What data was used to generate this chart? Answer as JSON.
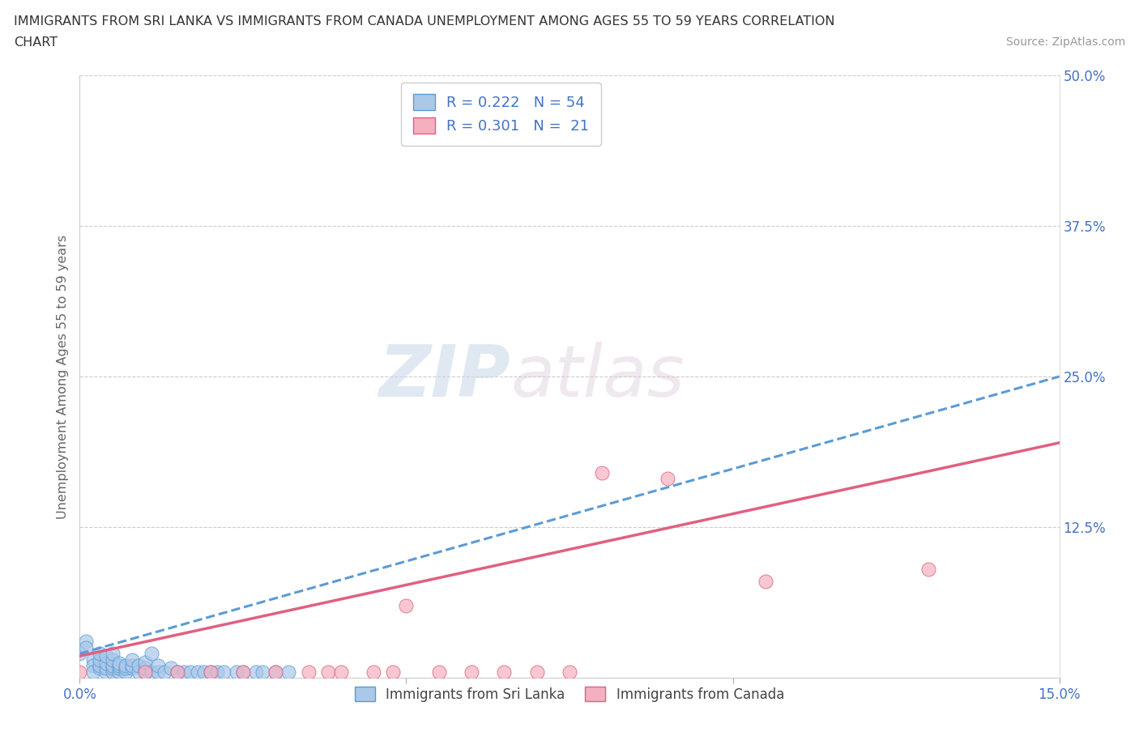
{
  "title_line1": "IMMIGRANTS FROM SRI LANKA VS IMMIGRANTS FROM CANADA UNEMPLOYMENT AMONG AGES 55 TO 59 YEARS CORRELATION",
  "title_line2": "CHART",
  "source": "Source: ZipAtlas.com",
  "ylabel": "Unemployment Among Ages 55 to 59 years",
  "xlim": [
    0.0,
    0.15
  ],
  "ylim": [
    0.0,
    0.5
  ],
  "xticks": [
    0.0,
    0.05,
    0.1,
    0.15
  ],
  "xtick_labels": [
    "0.0%",
    "",
    "",
    "15.0%"
  ],
  "yticks": [
    0.0,
    0.125,
    0.25,
    0.375,
    0.5
  ],
  "ytick_labels": [
    "",
    "12.5%",
    "25.0%",
    "37.5%",
    "50.0%"
  ],
  "sri_lanka_face_color": "#aac8e8",
  "sri_lanka_edge_color": "#5b9bd5",
  "canada_face_color": "#f5b0c0",
  "canada_edge_color": "#e06080",
  "sri_lanka_trend_color": "#5b9bd5",
  "canada_trend_color": "#e06080",
  "R_sri_lanka": "0.222",
  "N_sri_lanka": "54",
  "R_canada": "0.301",
  "N_canada": "21",
  "watermark_zip": "ZIP",
  "watermark_atlas": "atlas",
  "legend_label_sri_lanka": "Immigrants from Sri Lanka",
  "legend_label_canada": "Immigrants from Canada",
  "axis_label_color": "#4472c4",
  "title_color": "#333333",
  "source_color": "#999999",
  "ylabel_color": "#666666",
  "sl_x": [
    0.0,
    0.001,
    0.001,
    0.002,
    0.002,
    0.002,
    0.003,
    0.003,
    0.003,
    0.003,
    0.004,
    0.004,
    0.004,
    0.004,
    0.005,
    0.005,
    0.005,
    0.005,
    0.005,
    0.006,
    0.006,
    0.006,
    0.006,
    0.007,
    0.007,
    0.007,
    0.008,
    0.008,
    0.008,
    0.009,
    0.009,
    0.01,
    0.01,
    0.01,
    0.011,
    0.011,
    0.012,
    0.012,
    0.013,
    0.014,
    0.015,
    0.016,
    0.017,
    0.018,
    0.019,
    0.02,
    0.021,
    0.022,
    0.024,
    0.025,
    0.027,
    0.028,
    0.03,
    0.032
  ],
  "sl_y": [
    0.02,
    0.03,
    0.025,
    0.015,
    0.01,
    0.005,
    0.008,
    0.01,
    0.015,
    0.02,
    0.005,
    0.008,
    0.012,
    0.018,
    0.005,
    0.008,
    0.01,
    0.015,
    0.02,
    0.005,
    0.008,
    0.01,
    0.012,
    0.005,
    0.008,
    0.01,
    0.008,
    0.01,
    0.015,
    0.005,
    0.01,
    0.005,
    0.008,
    0.013,
    0.005,
    0.02,
    0.005,
    0.01,
    0.005,
    0.008,
    0.005,
    0.005,
    0.005,
    0.005,
    0.005,
    0.005,
    0.005,
    0.005,
    0.005,
    0.005,
    0.005,
    0.005,
    0.005,
    0.005
  ],
  "ca_x": [
    0.0,
    0.01,
    0.015,
    0.02,
    0.025,
    0.03,
    0.035,
    0.038,
    0.04,
    0.045,
    0.048,
    0.05,
    0.055,
    0.06,
    0.065,
    0.07,
    0.075,
    0.08,
    0.09,
    0.105,
    0.13
  ],
  "ca_y": [
    0.005,
    0.005,
    0.005,
    0.005,
    0.005,
    0.005,
    0.005,
    0.005,
    0.005,
    0.005,
    0.005,
    0.06,
    0.005,
    0.005,
    0.005,
    0.005,
    0.005,
    0.17,
    0.165,
    0.08,
    0.09
  ]
}
